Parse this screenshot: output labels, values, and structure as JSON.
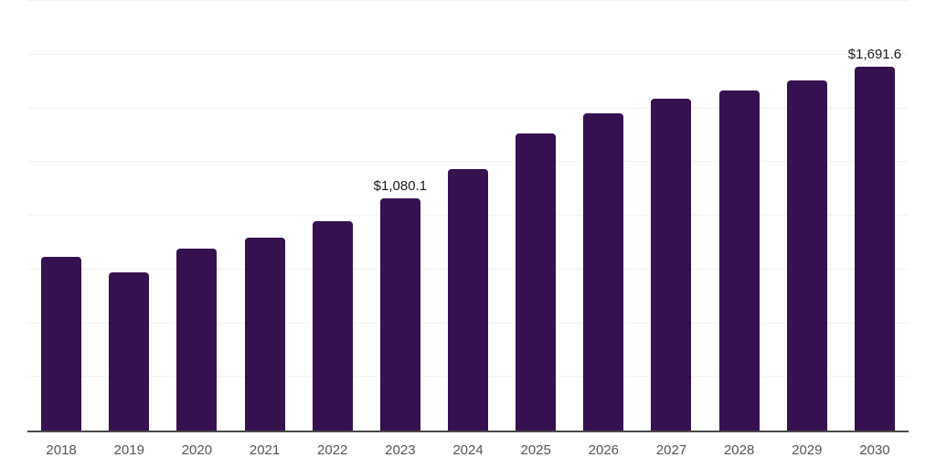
{
  "chart_data": {
    "type": "bar",
    "title": "",
    "xlabel": "",
    "ylabel": "",
    "categories": [
      "2018",
      "2019",
      "2020",
      "2021",
      "2022",
      "2023",
      "2024",
      "2025",
      "2026",
      "2027",
      "2028",
      "2029",
      "2030"
    ],
    "values": [
      808.5,
      736.3,
      846.7,
      897.6,
      974.0,
      1080.1,
      1218.0,
      1381.0,
      1475.0,
      1543.0,
      1585.0,
      1628.0,
      1691.6
    ],
    "data_labels": [
      "",
      "",
      "",
      "",
      "",
      "$1,080.1",
      "",
      "",
      "",
      "",
      "",
      "",
      "$1,691.6"
    ],
    "ylim": [
      0,
      2000
    ],
    "grid_interval": 250,
    "grid": true,
    "legend": false,
    "y_axis_labels_visible": false,
    "colors": {
      "bar": "#36114F",
      "grid": "#F2F2F2",
      "axis_line": "#4A4A4A",
      "tick_label": "#555555",
      "value_label": "#1A1A1A",
      "background": "#FFFFFF"
    }
  }
}
